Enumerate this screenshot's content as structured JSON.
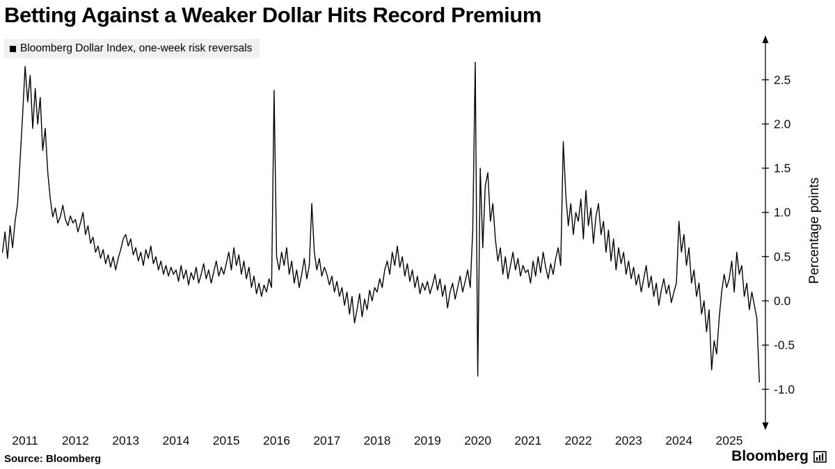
{
  "title": "Betting Against a Weaker Dollar Hits Record Premium",
  "legend": {
    "marker_color": "#000000",
    "label": "Bloomberg Dollar Index, one-week risk reversals"
  },
  "footer": {
    "source": "Source: Bloomberg",
    "brand": "Bloomberg"
  },
  "chart_data": {
    "type": "line",
    "title": "Betting Against a Weaker Dollar Hits Record Premium",
    "xlabel": "",
    "ylabel": "Percentage points",
    "grid": false,
    "y_axis_side": "right",
    "legend_position": "top-left",
    "xlim": [
      2010.5,
      2025.72
    ],
    "ylim": [
      -1.43,
      2.97
    ],
    "x_ticks": [
      2011,
      2012,
      2013,
      2014,
      2015,
      2016,
      2017,
      2018,
      2019,
      2020,
      2021,
      2022,
      2023,
      2024,
      2025
    ],
    "y_ticks": [
      2.5,
      2.0,
      1.5,
      1.0,
      0.5,
      0.0,
      -0.5,
      -1.0
    ],
    "series": [
      {
        "name": "Bloomberg Dollar Index, one-week risk reversals",
        "color": "#000000",
        "x_unit": "year",
        "x_start": 2010.55,
        "x_step_years": 0.05,
        "values": [
          0.55,
          0.78,
          0.48,
          0.85,
          0.6,
          0.9,
          1.1,
          1.6,
          2.1,
          2.65,
          2.25,
          2.55,
          1.95,
          2.4,
          2.0,
          2.3,
          1.7,
          1.95,
          1.45,
          1.15,
          0.95,
          1.05,
          0.88,
          0.95,
          1.08,
          0.92,
          0.85,
          0.96,
          0.88,
          0.92,
          0.78,
          0.88,
          1.0,
          0.75,
          0.85,
          0.65,
          0.72,
          0.55,
          0.62,
          0.48,
          0.58,
          0.42,
          0.52,
          0.38,
          0.5,
          0.35,
          0.48,
          0.58,
          0.7,
          0.75,
          0.62,
          0.7,
          0.52,
          0.6,
          0.45,
          0.55,
          0.4,
          0.58,
          0.48,
          0.62,
          0.42,
          0.5,
          0.35,
          0.45,
          0.3,
          0.4,
          0.28,
          0.38,
          0.3,
          0.35,
          0.22,
          0.4,
          0.25,
          0.35,
          0.18,
          0.32,
          0.24,
          0.38,
          0.2,
          0.3,
          0.42,
          0.25,
          0.35,
          0.2,
          0.33,
          0.45,
          0.28,
          0.38,
          0.3,
          0.42,
          0.55,
          0.35,
          0.6,
          0.4,
          0.52,
          0.3,
          0.45,
          0.25,
          0.38,
          0.15,
          0.28,
          0.08,
          0.2,
          0.05,
          0.18,
          0.1,
          0.25,
          0.15,
          2.38,
          0.5,
          0.35,
          0.55,
          0.4,
          0.6,
          0.3,
          0.45,
          0.2,
          0.35,
          0.15,
          0.3,
          0.48,
          0.25,
          0.4,
          1.1,
          0.55,
          0.35,
          0.48,
          0.28,
          0.38,
          0.3,
          0.18,
          0.28,
          0.1,
          0.22,
          0.05,
          0.15,
          -0.05,
          0.1,
          -0.15,
          0.05,
          -0.25,
          -0.1,
          0.08,
          -0.18,
          0.02,
          -0.1,
          0.12,
          0.0,
          0.15,
          0.1,
          0.25,
          0.15,
          0.35,
          0.45,
          0.3,
          0.55,
          0.4,
          0.62,
          0.38,
          0.5,
          0.28,
          0.42,
          0.22,
          0.35,
          0.15,
          0.28,
          0.08,
          0.2,
          0.12,
          0.22,
          0.08,
          0.18,
          0.3,
          0.12,
          0.25,
          0.05,
          0.18,
          -0.08,
          0.1,
          0.2,
          0.02,
          0.15,
          0.28,
          0.1,
          0.22,
          0.35,
          0.15,
          0.8,
          2.7,
          -0.85,
          1.5,
          0.6,
          1.3,
          1.45,
          0.9,
          1.1,
          0.7,
          0.45,
          0.6,
          0.3,
          0.5,
          0.25,
          0.4,
          0.55,
          0.35,
          0.48,
          0.28,
          0.4,
          0.32,
          0.35,
          0.2,
          0.45,
          0.28,
          0.5,
          0.32,
          0.55,
          0.38,
          0.25,
          0.42,
          0.3,
          0.48,
          0.6,
          0.4,
          1.8,
          1.2,
          0.85,
          1.1,
          0.75,
          1.0,
          0.9,
          1.15,
          0.7,
          1.25,
          0.85,
          1.05,
          0.65,
          0.95,
          1.1,
          0.75,
          0.9,
          0.55,
          0.8,
          0.45,
          0.7,
          0.35,
          0.6,
          0.42,
          0.55,
          0.3,
          0.45,
          0.25,
          0.38,
          0.18,
          0.3,
          0.1,
          0.25,
          0.4,
          0.15,
          0.28,
          0.05,
          0.2,
          -0.05,
          0.12,
          0.25,
          0.08,
          0.18,
          -0.02,
          0.1,
          0.2,
          0.9,
          0.55,
          0.75,
          0.4,
          0.6,
          0.2,
          0.35,
          0.05,
          0.2,
          -0.15,
          0.0,
          -0.35,
          -0.1,
          -0.78,
          -0.45,
          -0.6,
          -0.2,
          0.1,
          0.3,
          0.15,
          0.25,
          0.45,
          0.1,
          0.55,
          0.3,
          0.4,
          0.05,
          0.2,
          -0.1,
          0.1,
          -0.05,
          -0.2,
          -0.92
        ]
      }
    ]
  }
}
